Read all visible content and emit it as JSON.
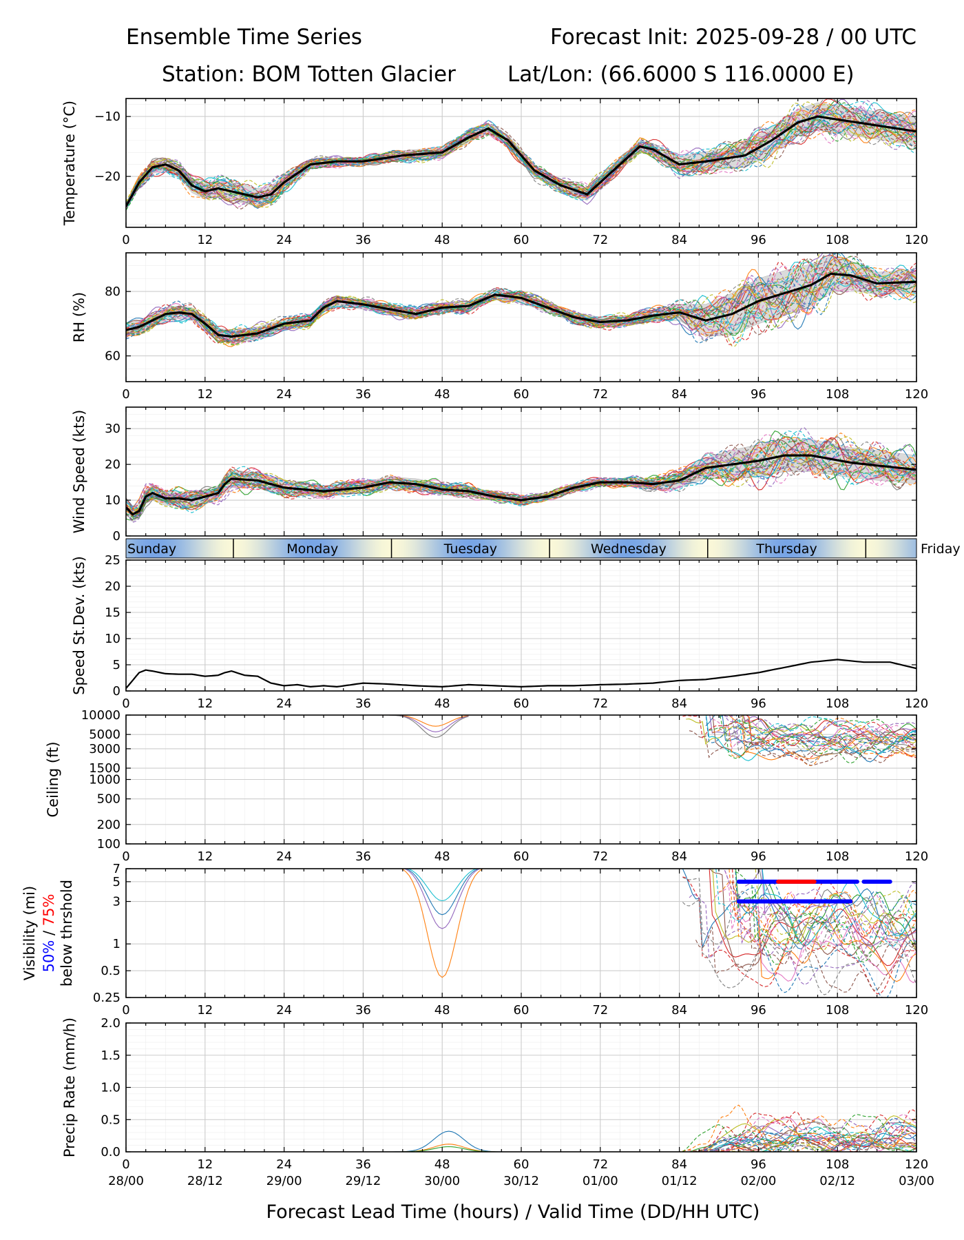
{
  "header": {
    "title_left": "Ensemble Time Series",
    "title_right": "Forecast Init: 2025-09-28 / 00 UTC",
    "station": "Station: BOM Totten Glacier",
    "latlon": "Lat/Lon: (66.6000 S 116.0000 E)"
  },
  "x_axis": {
    "label": "Forecast Lead Time (hours) / Valid Time (DD/HH UTC)",
    "ticks": [
      0,
      12,
      24,
      36,
      48,
      60,
      72,
      84,
      96,
      108,
      120
    ],
    "valid_times": [
      "28/00",
      "28/12",
      "29/00",
      "29/12",
      "30/00",
      "30/12",
      "01/00",
      "01/12",
      "02/00",
      "02/12",
      "03/00"
    ]
  },
  "days": [
    "Sunday",
    "Monday",
    "Tuesday",
    "Wednesday",
    "Thursday",
    "Friday"
  ],
  "colors": {
    "mean": "#000000",
    "spread": "#d3d3d3",
    "grid": "#dddddd",
    "vis50": "#0000ff",
    "vis75": "#ff0000",
    "members": [
      "#1f77b4",
      "#ff7f0e",
      "#2ca02c",
      "#d62728",
      "#9467bd",
      "#8c564b",
      "#e377c2",
      "#7f7f7f",
      "#bcbd22",
      "#17becf"
    ]
  },
  "chart_data": [
    {
      "type": "line",
      "id": "temperature",
      "ylabel": "Temperature (°C)",
      "ylim": [
        -28.5,
        -7
      ],
      "yticks": [
        -20,
        -10
      ],
      "ytick_labels": [
        "−20",
        "−10"
      ],
      "mean": {
        "x": [
          0,
          2,
          4,
          6,
          8,
          10,
          12,
          14,
          16,
          18,
          20,
          22,
          24,
          28,
          32,
          36,
          42,
          48,
          52,
          55,
          58,
          62,
          66,
          70,
          74,
          78,
          80,
          84,
          88,
          94,
          98,
          102,
          105,
          108,
          114,
          120
        ],
        "y": [
          -25,
          -21,
          -18.5,
          -18,
          -19,
          -21.5,
          -22.5,
          -22,
          -22.5,
          -23,
          -23.5,
          -23,
          -21,
          -18,
          -17.5,
          -17.5,
          -16.5,
          -16,
          -13.5,
          -12,
          -14,
          -19,
          -21.5,
          -23,
          -19,
          -15,
          -15.5,
          -18,
          -17.5,
          -16.5,
          -14,
          -11,
          -10,
          -10.5,
          -11.5,
          -12.5
        ]
      },
      "spread_half_width": [
        0.5,
        0.8,
        1,
        1,
        1,
        1.2,
        1.3,
        1.4,
        1.5,
        1.5,
        1.5,
        1.4,
        1.2,
        0.7,
        0.6,
        0.6,
        0.8,
        0.8,
        0.8,
        0.8,
        0.9,
        1,
        1,
        1,
        1,
        1,
        1,
        1.3,
        1.6,
        2,
        2.3,
        2.2,
        2.3,
        2.3,
        2.3,
        2.4
      ]
    },
    {
      "type": "line",
      "id": "rh",
      "ylabel": "RH (%)",
      "ylim": [
        52,
        92
      ],
      "yticks": [
        60,
        80
      ],
      "ytick_labels": [
        "60",
        "80"
      ],
      "mean": {
        "x": [
          0,
          2,
          4,
          6,
          8,
          10,
          12,
          14,
          16,
          18,
          20,
          24,
          28,
          30,
          32,
          36,
          40,
          44,
          48,
          52,
          56,
          60,
          64,
          68,
          72,
          76,
          80,
          84,
          88,
          92,
          96,
          100,
          104,
          107,
          110,
          114,
          120
        ],
        "y": [
          68,
          69,
          71,
          73,
          73.5,
          73,
          70,
          66.5,
          66,
          66.5,
          67,
          70,
          71,
          75,
          77,
          76,
          74.5,
          73,
          75,
          75.5,
          79,
          78,
          75,
          72,
          70.5,
          71,
          72.5,
          73.5,
          71,
          73,
          77,
          79.5,
          82,
          85.5,
          85,
          82.5,
          83
        ]
      },
      "spread_half_width": [
        2,
        2,
        2,
        2,
        2,
        2,
        2,
        2,
        2,
        2,
        2,
        1.5,
        1.5,
        1.5,
        1.5,
        1.5,
        1.5,
        1.5,
        1.5,
        1.5,
        1.5,
        1.5,
        1.5,
        1.5,
        1.5,
        1.5,
        1.8,
        2.5,
        5,
        6.5,
        7,
        7,
        6.5,
        5.5,
        4.5,
        3.5,
        3.5
      ]
    },
    {
      "type": "line",
      "id": "wind_speed",
      "ylabel": "Wind Speed (kts)",
      "ylim": [
        0,
        36
      ],
      "yticks": [
        0,
        10,
        20,
        30
      ],
      "ytick_labels": [
        "0",
        "10",
        "20",
        "30"
      ],
      "mean": {
        "x": [
          0,
          1,
          2,
          3,
          4,
          6,
          8,
          10,
          12,
          14,
          15,
          16,
          20,
          24,
          30,
          36,
          40,
          44,
          48,
          52,
          56,
          60,
          64,
          68,
          72,
          76,
          80,
          84,
          88,
          92,
          96,
          100,
          104,
          110,
          120
        ],
        "y": [
          8,
          6,
          7,
          11,
          12,
          10.5,
          10.5,
          10,
          11,
          12,
          14.5,
          16,
          15.5,
          13.5,
          12.5,
          13.5,
          15,
          14.5,
          13,
          12.5,
          11,
          10,
          11,
          13.5,
          15,
          15,
          14.5,
          15.5,
          19,
          20,
          21,
          22.5,
          22.5,
          20.5,
          18.5
        ]
      },
      "spread_half_width": [
        2,
        2,
        2,
        2,
        2,
        2,
        2,
        2,
        2,
        2,
        2.5,
        2.5,
        2,
        2,
        1.5,
        1.5,
        1.5,
        1.5,
        1.5,
        1.5,
        1,
        1,
        1,
        1,
        1,
        1,
        1.5,
        2,
        3,
        4,
        4.5,
        4.5,
        4.5,
        4.2,
        4
      ]
    },
    {
      "type": "line",
      "id": "speed_stdev",
      "ylabel": "Speed St.Dev. (kts)",
      "ylim": [
        0,
        25
      ],
      "yticks": [
        0,
        5,
        10,
        15,
        20,
        25
      ],
      "ytick_labels": [
        "0",
        "5",
        "10",
        "15",
        "20",
        "25"
      ],
      "mean": {
        "x": [
          0,
          1,
          2,
          3,
          4,
          6,
          8,
          10,
          12,
          14,
          15,
          16,
          18,
          20,
          22,
          24,
          26,
          28,
          30,
          32,
          36,
          40,
          44,
          48,
          52,
          56,
          60,
          64,
          68,
          72,
          76,
          80,
          84,
          88,
          92,
          96,
          100,
          104,
          108,
          112,
          116,
          120
        ],
        "y": [
          0.5,
          2,
          3.5,
          4,
          3.8,
          3.3,
          3.2,
          3.2,
          2.8,
          3,
          3.5,
          3.8,
          3,
          2.8,
          1.5,
          1,
          1.2,
          0.8,
          1,
          0.8,
          1.5,
          1.3,
          1,
          0.8,
          1.2,
          1,
          0.8,
          1,
          1,
          1.2,
          1.3,
          1.5,
          2,
          2.2,
          2.8,
          3.5,
          4.5,
          5.5,
          6,
          5.5,
          5.5,
          4.3
        ]
      }
    },
    {
      "type": "line",
      "id": "ceiling",
      "ylabel": "Ceiling (ft)",
      "scale": "log",
      "ylim": [
        100,
        10000
      ],
      "yticks": [
        100,
        200,
        500,
        1000,
        1500,
        3000,
        5000,
        10000
      ],
      "ytick_labels": [
        "100",
        "200",
        "500",
        "1000",
        "1500",
        "3000",
        "5000",
        "10000"
      ]
    },
    {
      "type": "line",
      "id": "visibility",
      "ylabel": "Visibility (mi)",
      "ylabel2_prefix": "50%",
      "ylabel2_sep": " / ",
      "ylabel2_suffix": "75%",
      "ylabel3": "below thrshold",
      "scale": "log",
      "ylim": [
        0.25,
        7
      ],
      "yticks": [
        0.25,
        0.5,
        1,
        3,
        5,
        7
      ],
      "ytick_labels": [
        "0.25",
        "0.5",
        "1",
        "3",
        "5",
        "7"
      ],
      "threshold_bars": [
        {
          "color": "vis50",
          "y": 3,
          "x": [
            93,
            110
          ]
        },
        {
          "color": "vis50",
          "y": 5,
          "x": [
            93,
            111
          ]
        },
        {
          "color": "vis50",
          "y": 5,
          "x": [
            112,
            116
          ]
        },
        {
          "color": "vis75",
          "y": 5,
          "x": [
            99,
            104.5
          ]
        }
      ]
    },
    {
      "type": "line",
      "id": "precip",
      "ylabel": "Precip Rate (mm/h)",
      "ylim": [
        0,
        2
      ],
      "yticks": [
        0,
        0.5,
        1,
        1.5,
        2
      ],
      "ytick_labels": [
        "0.0",
        "0.5",
        "1.0",
        "1.5",
        "2.0"
      ]
    }
  ]
}
